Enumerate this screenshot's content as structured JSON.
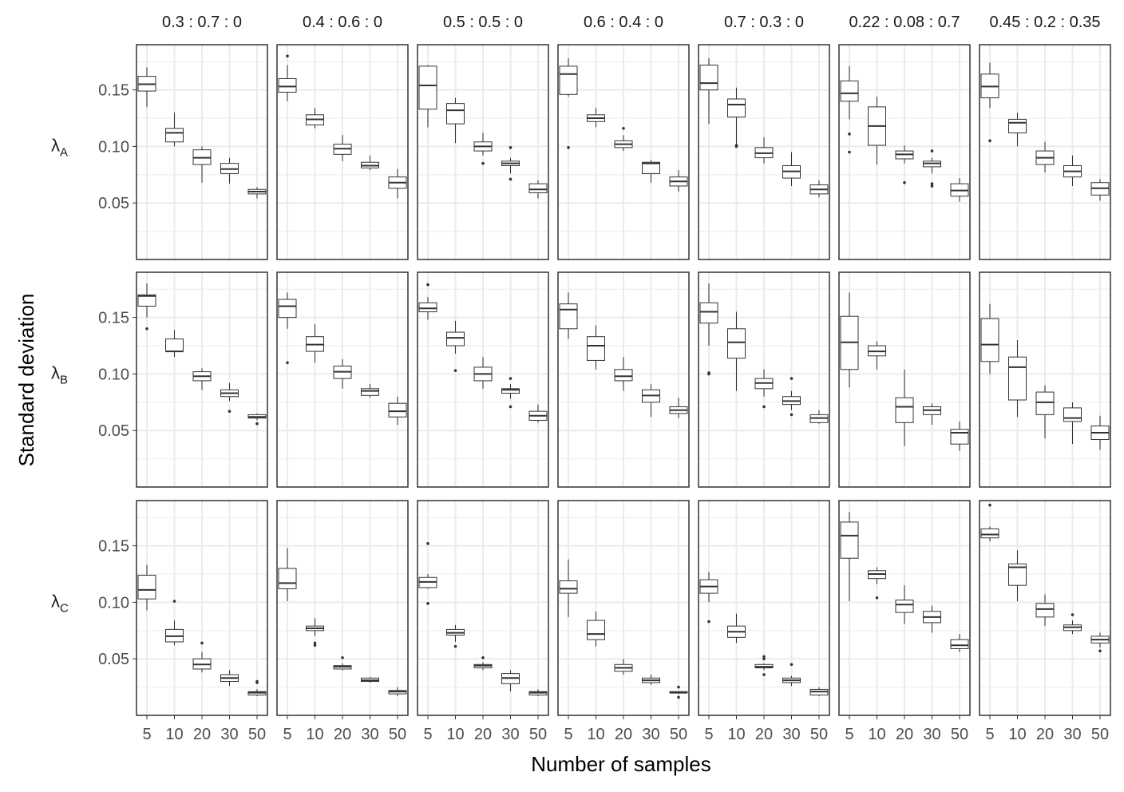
{
  "chart_data": {
    "type": "boxplot",
    "xlabel": "Number of samples",
    "ylabel": "Standard deviation",
    "x_categories": [
      "5",
      "10",
      "20",
      "30",
      "50"
    ],
    "y_ticks": [
      0.05,
      0.1,
      0.15
    ],
    "y_tick_labels": [
      "0.05",
      "0.10",
      "0.15"
    ],
    "ylim": [
      0.0,
      0.19
    ],
    "grid": true,
    "colors": {
      "panel_border": "#333333",
      "grid": "#ebebeb",
      "box": "#333333",
      "text": "#1a1a1a"
    },
    "columns": [
      "0.3 : 0.7 : 0",
      "0.4 : 0.6 : 0",
      "0.5 : 0.5 : 0",
      "0.6 : 0.4 : 0",
      "0.7 : 0.3 : 0",
      "0.22 : 0.08 : 0.7",
      "0.45 : 0.2 : 0.35"
    ],
    "rows": [
      {
        "symbol": "λ",
        "subscript": "A"
      },
      {
        "symbol": "λ",
        "subscript": "B"
      },
      {
        "symbol": "λ",
        "subscript": "C"
      }
    ],
    "panels": [
      [
        [
          [
            0.135,
            0.149,
            0.155,
            0.162,
            0.17,
            []
          ],
          [
            0.1,
            0.104,
            0.112,
            0.116,
            0.13,
            []
          ],
          [
            0.068,
            0.084,
            0.09,
            0.097,
            0.1,
            []
          ],
          [
            0.067,
            0.076,
            0.08,
            0.085,
            0.09,
            []
          ],
          [
            0.054,
            0.058,
            0.06,
            0.062,
            0.064,
            []
          ]
        ],
        [
          [
            0.14,
            0.148,
            0.153,
            0.16,
            0.172,
            [
              0.18
            ]
          ],
          [
            0.116,
            0.119,
            0.124,
            0.128,
            0.134,
            []
          ],
          [
            0.087,
            0.093,
            0.098,
            0.102,
            0.11,
            []
          ],
          [
            0.079,
            0.081,
            0.083,
            0.086,
            0.092,
            []
          ],
          [
            0.054,
            0.063,
            0.068,
            0.073,
            0.08,
            []
          ]
        ],
        [
          [
            0.117,
            0.133,
            0.154,
            0.171,
            0.172,
            []
          ],
          [
            0.103,
            0.12,
            0.132,
            0.138,
            0.143,
            []
          ],
          [
            0.092,
            0.096,
            0.1,
            0.104,
            0.112,
            [
              0.085
            ]
          ],
          [
            0.076,
            0.083,
            0.085,
            0.087,
            0.09,
            [
              0.071,
              0.099
            ]
          ],
          [
            0.054,
            0.059,
            0.062,
            0.067,
            0.07,
            []
          ]
        ],
        [
          [
            0.144,
            0.146,
            0.164,
            0.171,
            0.178,
            [
              0.099
            ]
          ],
          [
            0.117,
            0.122,
            0.125,
            0.128,
            0.134,
            []
          ],
          [
            0.096,
            0.099,
            0.102,
            0.105,
            0.11,
            [
              0.116
            ]
          ],
          [
            0.068,
            0.076,
            0.085,
            0.086,
            0.088,
            []
          ],
          [
            0.06,
            0.065,
            0.069,
            0.073,
            0.079,
            []
          ]
        ],
        [
          [
            0.12,
            0.15,
            0.156,
            0.172,
            0.178,
            []
          ],
          [
            0.101,
            0.126,
            0.137,
            0.142,
            0.152,
            [
              0.1,
              0.101
            ]
          ],
          [
            0.085,
            0.09,
            0.094,
            0.099,
            0.108,
            []
          ],
          [
            0.065,
            0.072,
            0.078,
            0.083,
            0.095,
            []
          ],
          [
            0.055,
            0.058,
            0.062,
            0.066,
            0.07,
            []
          ]
        ],
        [
          [
            0.124,
            0.14,
            0.147,
            0.158,
            0.171,
            [
              0.095,
              0.111
            ]
          ],
          [
            0.084,
            0.101,
            0.118,
            0.135,
            0.144,
            []
          ],
          [
            0.085,
            0.089,
            0.093,
            0.096,
            0.101,
            [
              0.068
            ]
          ],
          [
            0.076,
            0.082,
            0.085,
            0.087,
            0.09,
            [
              0.065,
              0.067,
              0.096
            ]
          ],
          [
            0.051,
            0.056,
            0.061,
            0.067,
            0.072,
            []
          ]
        ],
        [
          [
            0.134,
            0.143,
            0.153,
            0.164,
            0.174,
            [
              0.105
            ]
          ],
          [
            0.1,
            0.112,
            0.121,
            0.124,
            0.13,
            []
          ],
          [
            0.077,
            0.084,
            0.09,
            0.096,
            0.104,
            []
          ],
          [
            0.065,
            0.073,
            0.078,
            0.083,
            0.092,
            []
          ],
          [
            0.052,
            0.057,
            0.063,
            0.068,
            0.071,
            []
          ]
        ]
      ],
      [
        [
          [
            0.15,
            0.16,
            0.169,
            0.17,
            0.18,
            [
              0.14
            ]
          ],
          [
            0.115,
            0.12,
            0.12,
            0.131,
            0.139,
            []
          ],
          [
            0.086,
            0.094,
            0.098,
            0.102,
            0.105,
            []
          ],
          [
            0.076,
            0.08,
            0.083,
            0.086,
            0.092,
            [
              0.067
            ]
          ],
          [
            0.059,
            0.061,
            0.062,
            0.064,
            0.065,
            [
              0.056
            ]
          ]
        ],
        [
          [
            0.14,
            0.15,
            0.16,
            0.166,
            0.172,
            [
              0.11
            ]
          ],
          [
            0.11,
            0.12,
            0.126,
            0.133,
            0.144,
            []
          ],
          [
            0.087,
            0.096,
            0.102,
            0.107,
            0.113,
            []
          ],
          [
            0.079,
            0.081,
            0.085,
            0.087,
            0.091,
            []
          ],
          [
            0.055,
            0.062,
            0.067,
            0.074,
            0.08,
            []
          ]
        ],
        [
          [
            0.148,
            0.155,
            0.158,
            0.163,
            0.168,
            [
              0.179
            ]
          ],
          [
            0.118,
            0.125,
            0.132,
            0.137,
            0.147,
            [
              0.103
            ]
          ],
          [
            0.087,
            0.094,
            0.1,
            0.106,
            0.115,
            []
          ],
          [
            0.078,
            0.083,
            0.086,
            0.087,
            0.091,
            [
              0.071,
              0.096
            ]
          ],
          [
            0.057,
            0.059,
            0.063,
            0.067,
            0.073,
            []
          ]
        ],
        [
          [
            0.131,
            0.14,
            0.157,
            0.162,
            0.172,
            []
          ],
          [
            0.104,
            0.112,
            0.125,
            0.133,
            0.143,
            []
          ],
          [
            0.085,
            0.094,
            0.098,
            0.104,
            0.115,
            []
          ],
          [
            0.062,
            0.075,
            0.081,
            0.086,
            0.091,
            []
          ],
          [
            0.061,
            0.065,
            0.068,
            0.071,
            0.079,
            []
          ]
        ],
        [
          [
            0.125,
            0.145,
            0.155,
            0.163,
            0.18,
            [
              0.1,
              0.101
            ]
          ],
          [
            0.085,
            0.114,
            0.128,
            0.14,
            0.155,
            []
          ],
          [
            0.08,
            0.087,
            0.092,
            0.096,
            0.104,
            [
              0.071
            ]
          ],
          [
            0.068,
            0.073,
            0.076,
            0.08,
            0.085,
            [
              0.064,
              0.096
            ]
          ],
          [
            0.056,
            0.057,
            0.061,
            0.064,
            0.068,
            []
          ]
        ],
        [
          [
            0.088,
            0.104,
            0.128,
            0.151,
            0.172,
            []
          ],
          [
            0.104,
            0.116,
            0.12,
            0.125,
            0.129,
            []
          ],
          [
            0.036,
            0.057,
            0.071,
            0.079,
            0.104,
            []
          ],
          [
            0.055,
            0.064,
            0.068,
            0.071,
            0.074,
            []
          ],
          [
            0.032,
            0.038,
            0.048,
            0.051,
            0.058,
            []
          ]
        ],
        [
          [
            0.1,
            0.111,
            0.126,
            0.149,
            0.162,
            []
          ],
          [
            0.062,
            0.077,
            0.106,
            0.115,
            0.13,
            []
          ],
          [
            0.043,
            0.064,
            0.075,
            0.084,
            0.09,
            []
          ],
          [
            0.038,
            0.058,
            0.061,
            0.07,
            0.075,
            []
          ],
          [
            0.033,
            0.042,
            0.048,
            0.054,
            0.063,
            []
          ]
        ]
      ],
      [
        [
          [
            0.093,
            0.103,
            0.111,
            0.124,
            0.133,
            []
          ],
          [
            0.062,
            0.065,
            0.07,
            0.076,
            0.084,
            [
              0.101
            ]
          ],
          [
            0.038,
            0.041,
            0.045,
            0.05,
            0.056,
            [
              0.064
            ]
          ],
          [
            0.026,
            0.03,
            0.033,
            0.036,
            0.04,
            []
          ],
          [
            0.017,
            0.018,
            0.02,
            0.021,
            0.023,
            [
              0.029,
              0.03
            ]
          ]
        ],
        [
          [
            0.101,
            0.112,
            0.117,
            0.13,
            0.148,
            []
          ],
          [
            0.07,
            0.075,
            0.077,
            0.079,
            0.086,
            [
              0.062,
              0.064
            ]
          ],
          [
            0.04,
            0.041,
            0.043,
            0.044,
            0.046,
            [
              0.051
            ]
          ],
          [
            0.029,
            0.03,
            0.031,
            0.033,
            0.034,
            []
          ],
          [
            0.017,
            0.019,
            0.021,
            0.022,
            0.025,
            []
          ]
        ],
        [
          [
            0.112,
            0.113,
            0.118,
            0.122,
            0.125,
            [
              0.099,
              0.152
            ]
          ],
          [
            0.065,
            0.071,
            0.073,
            0.076,
            0.08,
            [
              0.061
            ]
          ],
          [
            0.04,
            0.042,
            0.044,
            0.045,
            0.047,
            [
              0.051
            ]
          ],
          [
            0.021,
            0.028,
            0.033,
            0.037,
            0.04,
            []
          ],
          [
            0.017,
            0.018,
            0.02,
            0.021,
            0.023,
            []
          ]
        ],
        [
          [
            0.087,
            0.108,
            0.112,
            0.119,
            0.138,
            []
          ],
          [
            0.061,
            0.067,
            0.072,
            0.084,
            0.092,
            []
          ],
          [
            0.036,
            0.039,
            0.042,
            0.045,
            0.05,
            []
          ],
          [
            0.027,
            0.029,
            0.031,
            0.033,
            0.036,
            []
          ],
          [
            0.019,
            0.02,
            0.02,
            0.021,
            0.021,
            [
              0.016,
              0.025
            ]
          ]
        ],
        [
          [
            0.1,
            0.108,
            0.114,
            0.12,
            0.127,
            [
              0.083
            ]
          ],
          [
            0.064,
            0.069,
            0.074,
            0.079,
            0.09,
            []
          ],
          [
            0.04,
            0.042,
            0.043,
            0.045,
            0.046,
            [
              0.036,
              0.05,
              0.052
            ]
          ],
          [
            0.026,
            0.029,
            0.031,
            0.033,
            0.035,
            [
              0.045
            ]
          ],
          [
            0.017,
            0.018,
            0.021,
            0.023,
            0.025,
            []
          ]
        ],
        [
          [
            0.101,
            0.139,
            0.159,
            0.171,
            0.18,
            []
          ],
          [
            0.116,
            0.121,
            0.125,
            0.128,
            0.131,
            [
              0.104
            ]
          ],
          [
            0.081,
            0.091,
            0.098,
            0.102,
            0.115,
            []
          ],
          [
            0.073,
            0.082,
            0.087,
            0.092,
            0.097,
            []
          ],
          [
            0.056,
            0.059,
            0.062,
            0.067,
            0.072,
            []
          ]
        ],
        [
          [
            0.154,
            0.157,
            0.16,
            0.165,
            0.167,
            [
              0.186
            ]
          ],
          [
            0.101,
            0.115,
            0.131,
            0.134,
            0.146,
            []
          ],
          [
            0.079,
            0.087,
            0.094,
            0.099,
            0.107,
            []
          ],
          [
            0.072,
            0.075,
            0.078,
            0.08,
            0.084,
            [
              0.089
            ]
          ],
          [
            0.06,
            0.064,
            0.067,
            0.07,
            0.073,
            [
              0.057
            ]
          ]
        ]
      ]
    ],
    "value_order": [
      "min",
      "q1",
      "median",
      "q3",
      "max",
      "outliers"
    ]
  }
}
